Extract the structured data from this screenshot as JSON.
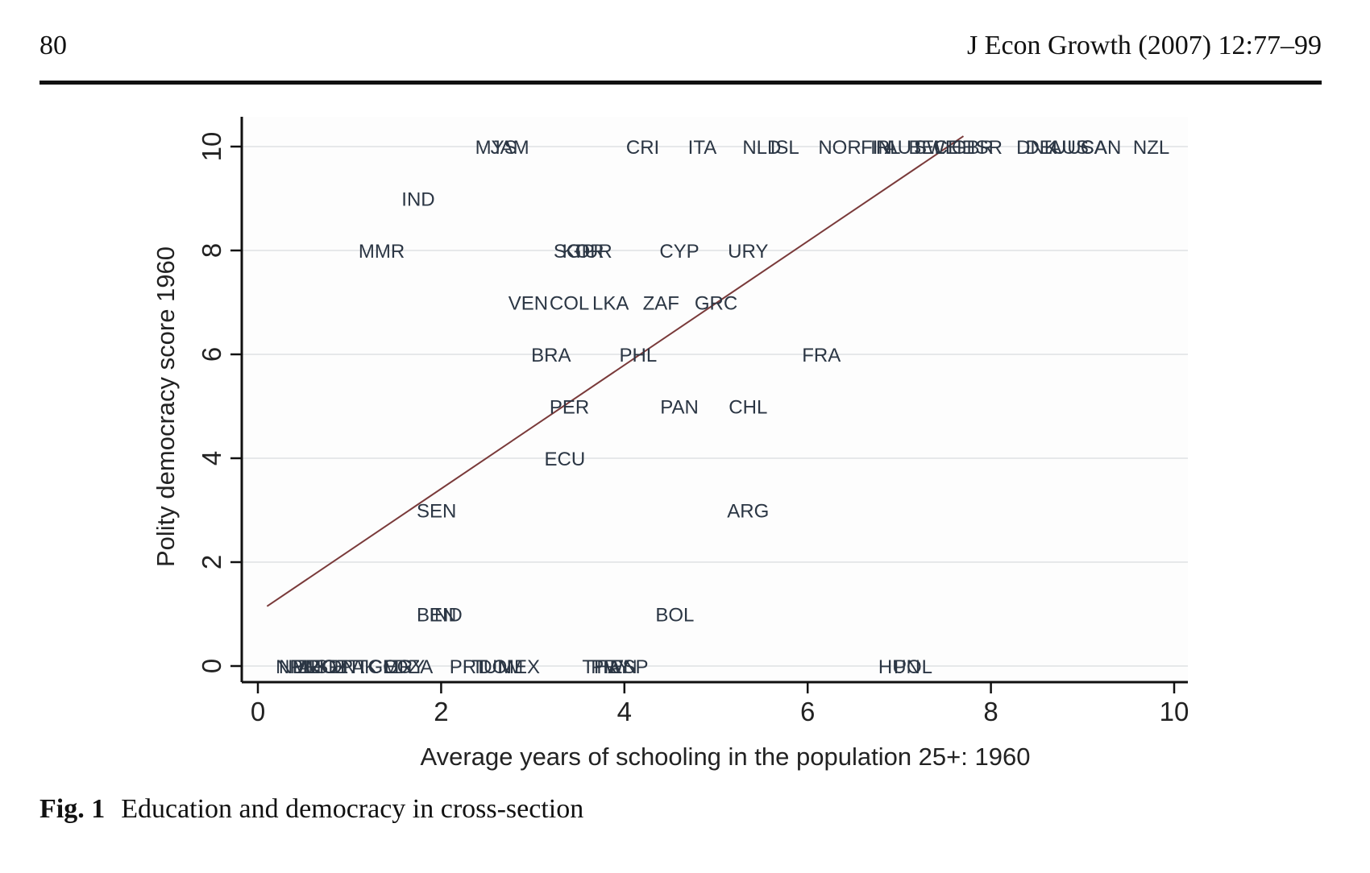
{
  "header": {
    "page_number": "80",
    "running_head": "J Econ Growth (2007) 12:77–99"
  },
  "caption": {
    "label": "Fig. 1",
    "text": "Education and democracy in cross-section"
  },
  "chart_data": {
    "type": "scatter",
    "title": "",
    "xlabel": "Average years of schooling in the population 25+: 1960",
    "ylabel": "Polity democracy score 1960",
    "xlim": [
      0,
      10
    ],
    "ylim": [
      0,
      10
    ],
    "xticks": [
      0,
      2,
      4,
      6,
      8,
      10
    ],
    "yticks": [
      0,
      2,
      4,
      6,
      8,
      10
    ],
    "grid": "horizontal",
    "marker": "country-code text labels",
    "fit_line": {
      "x": [
        0.1,
        7.7
      ],
      "y": [
        1.15,
        10.2
      ],
      "color": "#7a3a3a"
    },
    "points": [
      {
        "label": "MYS",
        "x": 2.6,
        "y": 10
      },
      {
        "label": "JAM",
        "x": 2.75,
        "y": 10
      },
      {
        "label": "CRI",
        "x": 4.2,
        "y": 10
      },
      {
        "label": "ITA",
        "x": 4.85,
        "y": 10
      },
      {
        "label": "NLD",
        "x": 5.5,
        "y": 10
      },
      {
        "label": "ISL",
        "x": 5.75,
        "y": 10
      },
      {
        "label": "NOR",
        "x": 6.35,
        "y": 10
      },
      {
        "label": "FIN",
        "x": 6.75,
        "y": 10
      },
      {
        "label": "IRL",
        "x": 6.85,
        "y": 10
      },
      {
        "label": "AUT",
        "x": 7.05,
        "y": 10
      },
      {
        "label": "BEL",
        "x": 7.3,
        "y": 10
      },
      {
        "label": "SWE",
        "x": 7.4,
        "y": 10
      },
      {
        "label": "CHE",
        "x": 7.6,
        "y": 10
      },
      {
        "label": "GBR",
        "x": 7.8,
        "y": 10
      },
      {
        "label": "ISR",
        "x": 7.95,
        "y": 10
      },
      {
        "label": "DNK",
        "x": 8.5,
        "y": 10
      },
      {
        "label": "DEU",
        "x": 8.6,
        "y": 10
      },
      {
        "label": "AUS",
        "x": 8.85,
        "y": 10
      },
      {
        "label": "USA",
        "x": 9.05,
        "y": 10
      },
      {
        "label": "CAN",
        "x": 9.2,
        "y": 10
      },
      {
        "label": "NZL",
        "x": 9.75,
        "y": 10
      },
      {
        "label": "IND",
        "x": 1.75,
        "y": 9
      },
      {
        "label": "MMR",
        "x": 1.35,
        "y": 8
      },
      {
        "label": "SGP",
        "x": 3.45,
        "y": 8
      },
      {
        "label": "KOR",
        "x": 3.55,
        "y": 8
      },
      {
        "label": "TUR",
        "x": 3.65,
        "y": 8
      },
      {
        "label": "CYP",
        "x": 4.6,
        "y": 8
      },
      {
        "label": "URY",
        "x": 5.35,
        "y": 8
      },
      {
        "label": "VEN",
        "x": 2.95,
        "y": 7
      },
      {
        "label": "COL",
        "x": 3.4,
        "y": 7
      },
      {
        "label": "LKA",
        "x": 3.85,
        "y": 7
      },
      {
        "label": "ZAF",
        "x": 4.4,
        "y": 7
      },
      {
        "label": "GRC",
        "x": 5.0,
        "y": 7
      },
      {
        "label": "BRA",
        "x": 3.2,
        "y": 6
      },
      {
        "label": "PHL",
        "x": 4.15,
        "y": 6
      },
      {
        "label": "FRA",
        "x": 6.15,
        "y": 6
      },
      {
        "label": "PER",
        "x": 3.4,
        "y": 5
      },
      {
        "label": "PAN",
        "x": 4.6,
        "y": 5
      },
      {
        "label": "CHL",
        "x": 5.35,
        "y": 5
      },
      {
        "label": "ECU",
        "x": 3.35,
        "y": 4
      },
      {
        "label": "SEN",
        "x": 1.95,
        "y": 3
      },
      {
        "label": "ARG",
        "x": 5.35,
        "y": 3
      },
      {
        "label": "BEN",
        "x": 1.95,
        "y": 1
      },
      {
        "label": "IND",
        "x": 2.05,
        "y": 1
      },
      {
        "label": "BOL",
        "x": 4.55,
        "y": 1
      },
      {
        "label": "NPL",
        "x": 0.4,
        "y": 0
      },
      {
        "label": "NER",
        "x": 0.45,
        "y": 0
      },
      {
        "label": "MLI",
        "x": 0.55,
        "y": 0
      },
      {
        "label": "AFG",
        "x": 0.65,
        "y": 0
      },
      {
        "label": "MOZ",
        "x": 0.75,
        "y": 0
      },
      {
        "label": "SDN",
        "x": 0.85,
        "y": 0
      },
      {
        "label": "HTI",
        "x": 1.0,
        "y": 0
      },
      {
        "label": "PAK",
        "x": 1.1,
        "y": 0
      },
      {
        "label": "TGO",
        "x": 1.3,
        "y": 0
      },
      {
        "label": "CMR",
        "x": 1.45,
        "y": 0
      },
      {
        "label": "EGY",
        "x": 1.6,
        "y": 0
      },
      {
        "label": "DZA",
        "x": 1.7,
        "y": 0
      },
      {
        "label": "PRT",
        "x": 2.3,
        "y": 0
      },
      {
        "label": "TUN",
        "x": 2.55,
        "y": 0
      },
      {
        "label": "DOM",
        "x": 2.65,
        "y": 0
      },
      {
        "label": "MEX",
        "x": 2.85,
        "y": 0
      },
      {
        "label": "THA",
        "x": 3.75,
        "y": 0
      },
      {
        "label": "PRY",
        "x": 3.85,
        "y": 0
      },
      {
        "label": "TWN",
        "x": 3.9,
        "y": 0
      },
      {
        "label": "ESP",
        "x": 4.05,
        "y": 0
      },
      {
        "label": "HUN",
        "x": 7.0,
        "y": 0
      },
      {
        "label": "POL",
        "x": 7.15,
        "y": 0
      }
    ]
  }
}
